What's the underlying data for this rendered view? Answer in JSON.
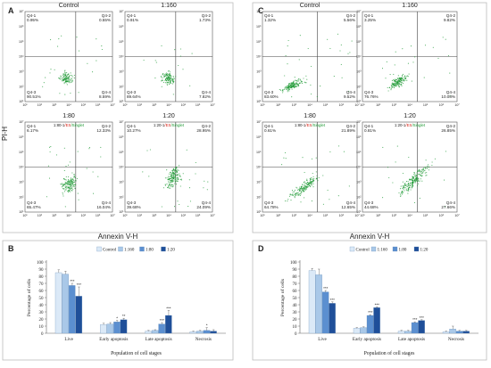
{
  "chart_data": [
    {
      "panel": "A",
      "type": "scatter",
      "xlabel": "Annexin V-H",
      "ylabel": "PI-H",
      "tick_labels": [
        "10¹",
        "10²",
        "10³",
        "10⁴",
        "10⁵",
        "10⁶",
        "10⁷"
      ],
      "plots": [
        {
          "title": "Control",
          "gate": "",
          "quadrants": {
            "Q4-1": "0.95%",
            "Q4-2": "0.55%",
            "Q4-3": "90.51%",
            "Q4-4": "8.59%"
          }
        },
        {
          "title": "1:160",
          "gate": "",
          "quadrants": {
            "Q4-1": "0.91%",
            "Q4-2": "1.73%",
            "Q4-3": "89.64%",
            "Q4-4": "7.82%"
          }
        },
        {
          "title": "1:80",
          "gate": "1:80-1/ES/Singlet",
          "quadrants": {
            "Q4-1": "6.17%",
            "Q4-2": "12.33%",
            "Q4-3": "65.47%",
            "Q4-4": "16.04%"
          }
        },
        {
          "title": "1:20",
          "gate": "1:20-1/ES/Singlet",
          "quadrants": {
            "Q4-1": "10.27%",
            "Q4-2": "28.95%",
            "Q4-3": "39.68%",
            "Q4-4": "24.09%"
          }
        }
      ]
    },
    {
      "panel": "C",
      "type": "scatter",
      "xlabel": "Annexin V-H",
      "ylabel": "",
      "tick_labels": [
        "10¹",
        "10²",
        "10³",
        "10⁴",
        "10⁵",
        "10⁶",
        "10⁷"
      ],
      "plots": [
        {
          "title": "Control",
          "gate": "",
          "quadrants": {
            "Q4-1": "1.32%",
            "Q4-2": "5.56%",
            "Q4-3": "83.60%",
            "Q4-4": "9.52%"
          }
        },
        {
          "title": "1:160",
          "gate": "",
          "quadrants": {
            "Q4-1": "3.25%",
            "Q4-2": "9.82%",
            "Q4-3": "76.76%",
            "Q4-4": "10.08%"
          }
        },
        {
          "title": "1:80",
          "gate": "1:80-1/ES/Singlet",
          "quadrants": {
            "Q4-1": "0.61%",
            "Q4-2": "21.89%",
            "Q4-3": "64.78%",
            "Q4-4": "12.65%"
          }
        },
        {
          "title": "1:20",
          "gate": "1:20-1/ES/Singlet",
          "quadrants": {
            "Q4-1": "0.81%",
            "Q4-2": "26.85%",
            "Q4-3": "44.68%",
            "Q4-4": "27.66%"
          }
        }
      ]
    },
    {
      "panel": "B",
      "type": "bar",
      "xlabel": "Population of cell stages",
      "ylabel": "Percentage of cells",
      "categories": [
        "Live",
        "Early apoptosis",
        "Late apoptosis",
        "Necrosis"
      ],
      "ylim": [
        0,
        100
      ],
      "yticks": [
        0,
        10,
        20,
        30,
        40,
        50,
        60,
        70,
        80,
        90,
        100
      ],
      "legend_position": "top",
      "series": [
        {
          "name": "Control",
          "values": [
            85,
            12,
            3,
            2
          ],
          "errors": [
            4,
            2,
            1,
            1
          ],
          "stars": [
            "",
            "",
            "",
            ""
          ]
        },
        {
          "name": "1:160",
          "values": [
            83,
            13,
            4,
            3
          ],
          "errors": [
            4,
            2,
            1,
            1
          ],
          "stars": [
            "",
            "",
            "",
            ""
          ]
        },
        {
          "name": "1:80",
          "values": [
            67,
            16,
            13,
            4
          ],
          "errors": [
            3,
            2,
            2,
            4
          ],
          "stars": [
            "***",
            "*",
            "***",
            "*"
          ]
        },
        {
          "name": "1:20",
          "values": [
            52,
            19,
            25,
            3
          ],
          "errors": [
            13,
            2,
            7,
            2
          ],
          "stars": [
            "***",
            "**",
            "***",
            ""
          ]
        }
      ]
    },
    {
      "panel": "D",
      "type": "bar",
      "xlabel": "Population of cell stages",
      "ylabel": "Percentage of cells",
      "categories": [
        "Live",
        "Early apoptosis",
        "Late apoptosis",
        "Necrosis"
      ],
      "ylim": [
        0,
        100
      ],
      "yticks": [
        0,
        10,
        20,
        30,
        40,
        50,
        60,
        70,
        80,
        90,
        100
      ],
      "legend_position": "top",
      "series": [
        {
          "name": "Control",
          "values": [
            88,
            7,
            3,
            2
          ],
          "errors": [
            3,
            1,
            1,
            1
          ],
          "stars": [
            "",
            "",
            "",
            ""
          ]
        },
        {
          "name": "1:160",
          "values": [
            82,
            8,
            3,
            6
          ],
          "errors": [
            8,
            1,
            1,
            4
          ],
          "stars": [
            "",
            "",
            "",
            ""
          ]
        },
        {
          "name": "1:80",
          "values": [
            58,
            25,
            15,
            3
          ],
          "errors": [
            2,
            1,
            1,
            1
          ],
          "stars": [
            "***",
            "***",
            "***",
            ""
          ]
        },
        {
          "name": "1:20",
          "values": [
            42,
            36,
            18,
            3
          ],
          "errors": [
            2,
            1,
            1,
            1
          ],
          "stars": [
            "***",
            "***",
            "***",
            ""
          ]
        }
      ]
    }
  ],
  "colors": {
    "dots": "#1f9a35",
    "gate_red": "#d9261c",
    "gate_green": "#1f9a35",
    "bars": [
      "#dbe9f7",
      "#a9c8e8",
      "#5b8fd0",
      "#1f4f99"
    ],
    "frame": "#bdbdbd"
  }
}
